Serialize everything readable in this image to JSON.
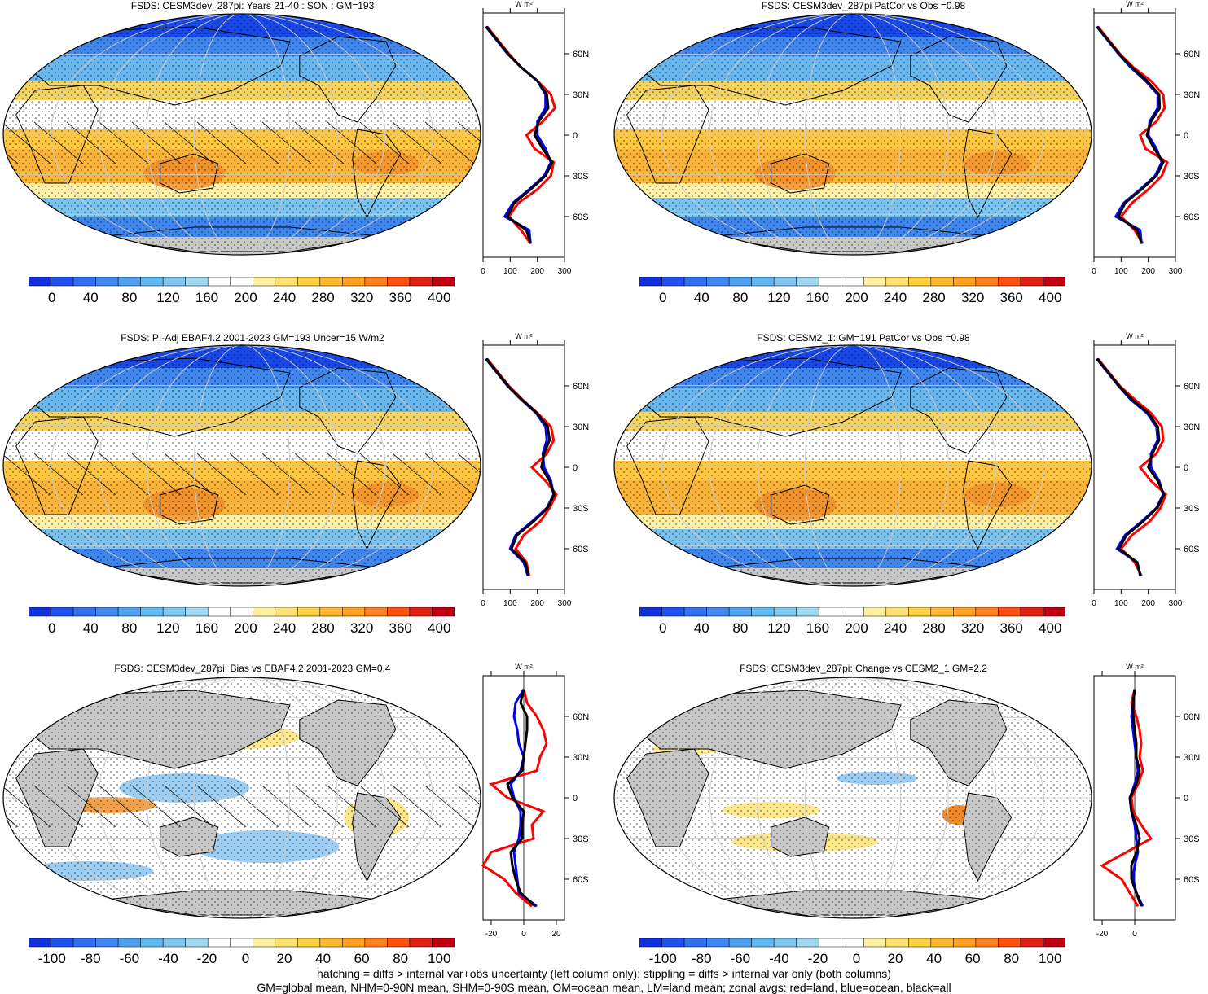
{
  "footnotes": {
    "line1": "hatching = diffs > internal var+obs uncertainty (left column only); stippling = diffs > internal var only (both columns)",
    "line2": "GM=global mean, NHM=0-90N mean, SHM=0-90S mean, OM=ocean mean, LM=land mean; zonal avgs: red=land, blue=ocean, black=all"
  },
  "zonal_axis_title": "W m²",
  "lat_labels": [
    "60N",
    "30N",
    "0",
    "30S",
    "60S"
  ],
  "colors": {
    "absolute_scale": [
      "#1030e0",
      "#2050f0",
      "#3070f0",
      "#4088f0",
      "#50a0f0",
      "#60b8f0",
      "#80c8f0",
      "#a0d8f0",
      "#ffffff",
      "#ffffff",
      "#fff0a0",
      "#ffe070",
      "#ffd040",
      "#ffb830",
      "#ffa020",
      "#ff8020",
      "#ff5010",
      "#e02010",
      "#c00010"
    ],
    "diff_scale": [
      "#1030e0",
      "#2050f0",
      "#3070f0",
      "#4088f0",
      "#50a0f0",
      "#60b8f0",
      "#80c8f0",
      "#a0d8f0",
      "#ffffff",
      "#ffffff",
      "#fff0a0",
      "#ffe070",
      "#ffd040",
      "#ffb830",
      "#ffa020",
      "#ff8020",
      "#ff5010",
      "#e02010",
      "#c00010"
    ],
    "land_line": "#ff0000",
    "ocean_line": "#0000ff",
    "all_line": "#000000"
  },
  "chart_data": [
    {
      "type": "heatmap",
      "title": "FSDS: CESM3dev_287pi: Years 21-40 : SON : GM=193",
      "colorbar_labels": [
        "0",
        "40",
        "80",
        "120",
        "160",
        "200",
        "240",
        "280",
        "320",
        "360",
        "400"
      ],
      "zonal": {
        "xlim": [
          0,
          300
        ],
        "xticks": [
          "0",
          "100",
          "200",
          "300"
        ],
        "lat": [
          80,
          70,
          60,
          50,
          40,
          30,
          20,
          10,
          0,
          -10,
          -20,
          -30,
          -40,
          -50,
          -60,
          -70,
          -80
        ],
        "land": [
          15,
          55,
          95,
          140,
          200,
          250,
          265,
          220,
          160,
          190,
          260,
          250,
          200,
          130,
          95,
          140,
          175
        ],
        "ocean": [
          10,
          50,
          90,
          140,
          200,
          230,
          230,
          200,
          200,
          230,
          250,
          225,
          170,
          110,
          80,
          170,
          175
        ],
        "all": [
          12,
          52,
          92,
          140,
          200,
          235,
          240,
          205,
          190,
          220,
          255,
          230,
          175,
          115,
          90,
          160,
          175
        ]
      }
    },
    {
      "type": "heatmap",
      "title": "FSDS: CESM3dev_287pi PatCor vs Obs =0.98",
      "colorbar_labels": [
        "0",
        "40",
        "80",
        "120",
        "160",
        "200",
        "240",
        "280",
        "320",
        "360",
        "400"
      ],
      "zonal": {
        "xlim": [
          0,
          300
        ],
        "xticks": [
          "0",
          "100",
          "200",
          "300"
        ],
        "lat": [
          80,
          70,
          60,
          50,
          40,
          30,
          20,
          10,
          0,
          -10,
          -20,
          -30,
          -40,
          -50,
          -60,
          -70,
          -80
        ],
        "land": [
          15,
          55,
          95,
          145,
          210,
          255,
          260,
          230,
          170,
          190,
          270,
          250,
          200,
          140,
          100,
          150,
          180
        ],
        "ocean": [
          10,
          50,
          90,
          135,
          190,
          235,
          235,
          205,
          200,
          230,
          250,
          225,
          170,
          110,
          80,
          170,
          175
        ],
        "all": [
          12,
          52,
          92,
          140,
          195,
          240,
          242,
          210,
          195,
          222,
          255,
          230,
          175,
          115,
          90,
          160,
          175
        ]
      }
    },
    {
      "type": "heatmap",
      "title": "FSDS: PI-Adj EBAF4.2 2001-2023 GM=193 Uncer=15 W/m2",
      "colorbar_labels": [
        "0",
        "40",
        "80",
        "120",
        "160",
        "200",
        "240",
        "280",
        "320",
        "360",
        "400"
      ],
      "zonal": {
        "xlim": [
          0,
          300
        ],
        "xticks": [
          "0",
          "100",
          "200",
          "300"
        ],
        "lat": [
          80,
          70,
          60,
          50,
          40,
          30,
          20,
          10,
          0,
          -10,
          -20,
          -30,
          -40,
          -50,
          -60,
          -70,
          -80
        ],
        "land": [
          15,
          55,
          95,
          145,
          200,
          250,
          260,
          235,
          180,
          230,
          270,
          245,
          210,
          150,
          120,
          160,
          170
        ],
        "ocean": [
          10,
          50,
          90,
          140,
          195,
          230,
          235,
          220,
          225,
          250,
          260,
          235,
          180,
          120,
          100,
          150,
          165
        ],
        "all": [
          12,
          52,
          92,
          142,
          198,
          238,
          245,
          225,
          215,
          245,
          262,
          238,
          185,
          125,
          105,
          155,
          168
        ]
      }
    },
    {
      "type": "heatmap",
      "title": "FSDS: CESM2_1: GM=191 PatCor vs Obs =0.98",
      "colorbar_labels": [
        "0",
        "40",
        "80",
        "120",
        "160",
        "200",
        "240",
        "280",
        "320",
        "360",
        "400"
      ],
      "zonal": {
        "xlim": [
          0,
          300
        ],
        "xticks": [
          "0",
          "100",
          "200",
          "300"
        ],
        "lat": [
          80,
          70,
          60,
          50,
          40,
          30,
          20,
          10,
          0,
          -10,
          -20,
          -30,
          -40,
          -50,
          -60,
          -70,
          -80
        ],
        "land": [
          15,
          55,
          95,
          150,
          210,
          250,
          255,
          230,
          170,
          210,
          265,
          245,
          205,
          140,
          100,
          150,
          175
        ],
        "ocean": [
          10,
          50,
          90,
          135,
          195,
          230,
          235,
          210,
          210,
          240,
          255,
          230,
          175,
          115,
          85,
          160,
          170
        ],
        "all": [
          12,
          52,
          92,
          140,
          200,
          235,
          240,
          215,
          200,
          235,
          258,
          233,
          180,
          120,
          92,
          158,
          172
        ]
      }
    },
    {
      "type": "heatmap",
      "title": "FSDS: CESM3dev_287pi: Bias vs EBAF4.2 2001-2023  GM=0.4",
      "colorbar_labels": [
        "-100",
        "-80",
        "-60",
        "-40",
        "-20",
        "0",
        "20",
        "40",
        "60",
        "80",
        "100"
      ],
      "zonal": {
        "xlim": [
          -25,
          25
        ],
        "xticks": [
          "-20",
          "0",
          "20"
        ],
        "lat": [
          80,
          70,
          60,
          50,
          40,
          30,
          20,
          10,
          0,
          -10,
          -20,
          -30,
          -40,
          -50,
          -60,
          -70,
          -80
        ],
        "land": [
          0,
          2,
          8,
          12,
          14,
          10,
          8,
          -20,
          -10,
          12,
          5,
          6,
          -20,
          -25,
          -12,
          -5,
          5
        ],
        "ocean": [
          0,
          -5,
          -6,
          -4,
          -3,
          0,
          -2,
          -8,
          -6,
          -2,
          -2,
          -3,
          -6,
          -5,
          -4,
          -3,
          8
        ],
        "all": [
          0,
          -2,
          2,
          2,
          1,
          0,
          -1,
          -10,
          -7,
          0,
          -1,
          -1,
          -8,
          -7,
          -5,
          -2,
          7
        ]
      }
    },
    {
      "type": "heatmap",
      "title": "FSDS: CESM3dev_287pi: Change vs CESM2_1 GM=2.2",
      "colorbar_labels": [
        "-100",
        "-80",
        "-60",
        "-40",
        "-20",
        "0",
        "20",
        "40",
        "60",
        "80",
        "100"
      ],
      "zonal": {
        "xlim": [
          -25,
          25
        ],
        "xticks": [
          "-20",
          "0"
        ],
        "lat": [
          80,
          70,
          60,
          50,
          40,
          30,
          20,
          10,
          0,
          -10,
          -20,
          -30,
          -40,
          -50,
          -60,
          -70,
          -80
        ],
        "land": [
          0,
          -2,
          1,
          3,
          4,
          3,
          5,
          2,
          -2,
          -1,
          4,
          10,
          -5,
          -20,
          -8,
          -3,
          2
        ],
        "ocean": [
          0,
          -1,
          -2,
          -1,
          0,
          1,
          2,
          0,
          -3,
          -2,
          0,
          1,
          2,
          0,
          -1,
          1,
          5
        ],
        "all": [
          0,
          -1,
          -1,
          0,
          1,
          1,
          3,
          1,
          -3,
          -2,
          1,
          3,
          1,
          -2,
          -2,
          1,
          4
        ]
      }
    }
  ]
}
